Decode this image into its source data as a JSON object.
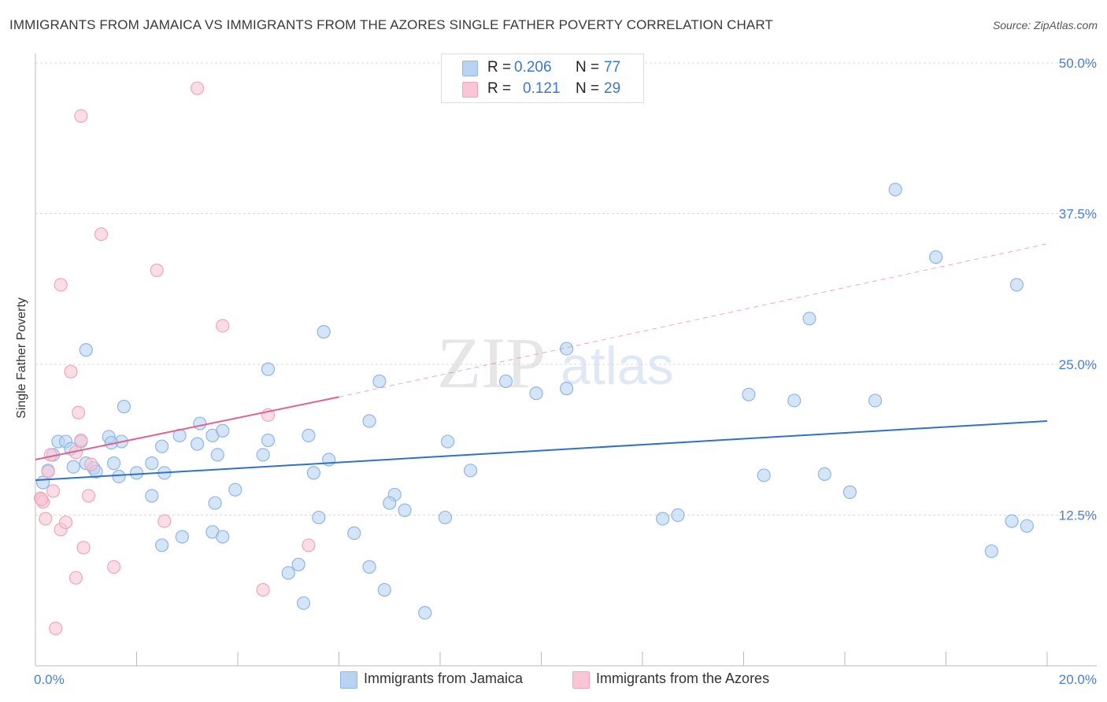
{
  "header": {
    "title": "IMMIGRANTS FROM JAMAICA VS IMMIGRANTS FROM THE AZORES SINGLE FATHER POVERTY CORRELATION CHART",
    "source": "Source: ZipAtlas.com"
  },
  "watermark": {
    "zip": "ZIP",
    "atlas": "atlas"
  },
  "legend_top": {
    "rows": [
      {
        "r_label": "R =",
        "r_value": "0.206",
        "n_label": "N =",
        "n_value": "77"
      },
      {
        "r_label": "R =",
        "r_value": "0.121",
        "n_label": "N =",
        "n_value": "29"
      }
    ]
  },
  "colors": {
    "blue_fill": "#b9d3f3",
    "blue_stroke": "#8fb6e6",
    "blue_line": "#2f72c8",
    "pink_fill": "#f8c6d5",
    "pink_stroke": "#f0a6bd",
    "pink_line": "#e0638e",
    "axis_text": "#4a7fcf"
  },
  "chart_data": {
    "type": "scatter",
    "title": "IMMIGRANTS FROM JAMAICA VS IMMIGRANTS FROM THE AZORES SINGLE FATHER POVERTY CORRELATION CHART",
    "xlabel": "",
    "ylabel": "Single Father Poverty",
    "xlim": [
      0,
      20
    ],
    "ylim": [
      0,
      50
    ],
    "x_tick_labels": [
      {
        "value": 0,
        "label": "0.0%"
      },
      {
        "value": 20,
        "label": "20.0%"
      }
    ],
    "y_tick_labels": [
      {
        "value": 12.5,
        "label": "12.5%"
      },
      {
        "value": 25,
        "label": "25.0%"
      },
      {
        "value": 37.5,
        "label": "37.5%"
      },
      {
        "value": 50,
        "label": "50.0%"
      }
    ],
    "grid": true,
    "series": [
      {
        "name": "Immigrants from Jamaica",
        "color": "#b9d3f3",
        "r": 0.206,
        "n": 77,
        "trend": {
          "x": [
            0,
            20
          ],
          "y": [
            15.4,
            20.3
          ],
          "style": "solid"
        },
        "points": [
          [
            0.15,
            15.2
          ],
          [
            0.25,
            16.2
          ],
          [
            0.35,
            17.5
          ],
          [
            0.45,
            18.6
          ],
          [
            0.6,
            18.6
          ],
          [
            0.7,
            18.0
          ],
          [
            0.9,
            18.6
          ],
          [
            0.75,
            16.5
          ],
          [
            1.0,
            16.8
          ],
          [
            1.15,
            16.4
          ],
          [
            1.45,
            19.0
          ],
          [
            1.7,
            18.6
          ],
          [
            1.2,
            16.1
          ],
          [
            1.55,
            16.8
          ],
          [
            1.65,
            15.7
          ],
          [
            1.75,
            21.5
          ],
          [
            2.0,
            16.0
          ],
          [
            2.3,
            16.8
          ],
          [
            2.55,
            16.0
          ],
          [
            2.5,
            18.2
          ],
          [
            2.85,
            19.1
          ],
          [
            3.2,
            18.4
          ],
          [
            3.5,
            19.1
          ],
          [
            3.7,
            19.5
          ],
          [
            3.6,
            17.5
          ],
          [
            2.3,
            14.1
          ],
          [
            2.5,
            10.0
          ],
          [
            2.9,
            10.7
          ],
          [
            3.5,
            11.1
          ],
          [
            3.7,
            10.7
          ],
          [
            3.55,
            13.5
          ],
          [
            3.95,
            14.6
          ],
          [
            4.6,
            18.7
          ],
          [
            4.5,
            17.5
          ],
          [
            5.0,
            7.7
          ],
          [
            5.3,
            5.2
          ],
          [
            5.2,
            8.4
          ],
          [
            5.5,
            16.0
          ],
          [
            5.6,
            12.3
          ],
          [
            5.8,
            17.1
          ],
          [
            5.4,
            19.1
          ],
          [
            6.3,
            11.0
          ],
          [
            6.6,
            8.2
          ],
          [
            6.9,
            6.3
          ],
          [
            7.1,
            14.2
          ],
          [
            7.0,
            13.5
          ],
          [
            7.3,
            12.9
          ],
          [
            7.7,
            4.4
          ],
          [
            8.1,
            12.3
          ],
          [
            8.15,
            18.6
          ],
          [
            8.6,
            16.2
          ],
          [
            9.3,
            23.6
          ],
          [
            9.9,
            22.6
          ],
          [
            10.5,
            23.0
          ],
          [
            6.8,
            23.6
          ],
          [
            4.6,
            24.6
          ],
          [
            5.7,
            27.7
          ],
          [
            6.6,
            20.3
          ],
          [
            3.25,
            20.1
          ],
          [
            1.5,
            18.5
          ],
          [
            1.0,
            26.2
          ],
          [
            10.5,
            26.3
          ],
          [
            12.4,
            12.2
          ],
          [
            12.7,
            12.5
          ],
          [
            14.1,
            22.5
          ],
          [
            14.4,
            15.8
          ],
          [
            15.0,
            22.0
          ],
          [
            15.3,
            28.8
          ],
          [
            15.6,
            15.9
          ],
          [
            16.1,
            14.4
          ],
          [
            16.6,
            22.0
          ],
          [
            17.0,
            39.5
          ],
          [
            17.8,
            33.9
          ],
          [
            18.9,
            9.5
          ],
          [
            19.3,
            12.0
          ],
          [
            19.6,
            11.6
          ],
          [
            19.4,
            31.6
          ]
        ]
      },
      {
        "name": "Immigrants from the Azores",
        "color": "#f8c6d5",
        "r": 0.121,
        "n": 29,
        "trend": {
          "x": [
            0,
            6
          ],
          "y": [
            17.1,
            22.3
          ],
          "style": "solid",
          "extension": {
            "x": [
              6,
              20
            ],
            "y": [
              22.3,
              35.0
            ],
            "style": "dashed"
          }
        },
        "points": [
          [
            0.1,
            13.9
          ],
          [
            0.15,
            13.6
          ],
          [
            0.2,
            12.2
          ],
          [
            0.25,
            16.1
          ],
          [
            0.35,
            14.5
          ],
          [
            0.4,
            3.1
          ],
          [
            0.5,
            11.3
          ],
          [
            0.6,
            11.9
          ],
          [
            0.7,
            24.4
          ],
          [
            0.8,
            17.7
          ],
          [
            0.9,
            18.7
          ],
          [
            0.85,
            21.0
          ],
          [
            0.95,
            9.8
          ],
          [
            1.05,
            14.1
          ],
          [
            1.1,
            16.7
          ],
          [
            1.3,
            35.8
          ],
          [
            0.5,
            31.6
          ],
          [
            0.9,
            45.6
          ],
          [
            1.55,
            8.2
          ],
          [
            2.55,
            12.0
          ],
          [
            2.4,
            32.8
          ],
          [
            3.7,
            28.2
          ],
          [
            4.6,
            20.8
          ],
          [
            4.5,
            6.3
          ],
          [
            5.4,
            10.0
          ],
          [
            3.2,
            47.9
          ],
          [
            0.8,
            7.3
          ],
          [
            0.3,
            17.5
          ],
          [
            0.12,
            13.8
          ]
        ]
      }
    ]
  },
  "legend_bottom": {
    "items": [
      {
        "label": "Immigrants from Jamaica"
      },
      {
        "label": "Immigrants from the Azores"
      }
    ]
  }
}
